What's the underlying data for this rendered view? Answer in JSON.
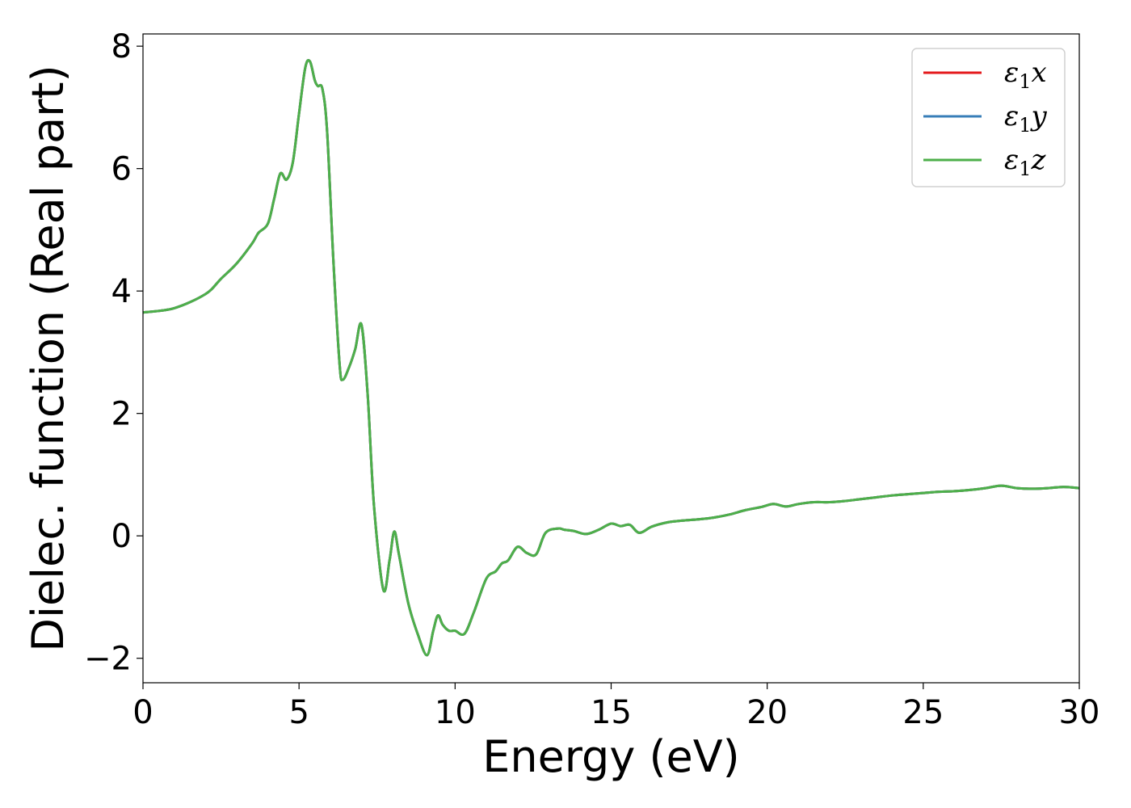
{
  "chart_data": {
    "type": "line",
    "xlabel": "Energy (eV)",
    "ylabel": "Dielec. function (Real part)",
    "xlim": [
      0,
      30
    ],
    "ylim": [
      -2.4,
      8.2
    ],
    "xticks": [
      0,
      5,
      10,
      15,
      20,
      25,
      30
    ],
    "yticks": [
      -2,
      0,
      2,
      4,
      6,
      8
    ],
    "xtick_labels": [
      "0",
      "5",
      "10",
      "15",
      "20",
      "25",
      "30"
    ],
    "ytick_labels": [
      "−2",
      "0",
      "2",
      "4",
      "6",
      "8"
    ],
    "grid": false,
    "legend_position": "top-right",
    "x": [
      0,
      1,
      2,
      2.5,
      3,
      3.5,
      3.7,
      4,
      4.2,
      4.4,
      4.6,
      4.8,
      5,
      5.2,
      5.35,
      5.5,
      5.6,
      5.75,
      5.9,
      6.1,
      6.3,
      6.4,
      6.6,
      6.8,
      7.0,
      7.2,
      7.4,
      7.7,
      7.9,
      8.05,
      8.2,
      8.5,
      8.8,
      9.1,
      9.3,
      9.45,
      9.6,
      9.8,
      10.0,
      10.3,
      10.6,
      11.0,
      11.3,
      11.5,
      11.7,
      12.0,
      12.3,
      12.6,
      12.9,
      13.3,
      13.5,
      13.8,
      14.2,
      14.6,
      15.0,
      15.3,
      15.6,
      15.9,
      16.3,
      16.8,
      17.3,
      17.8,
      18.3,
      18.8,
      19.3,
      19.8,
      20.2,
      20.6,
      21.0,
      21.5,
      22.0,
      22.5,
      23.0,
      23.5,
      24.0,
      24.5,
      25.0,
      25.5,
      26.0,
      26.5,
      27.0,
      27.5,
      28.0,
      28.5,
      29.0,
      29.5,
      30.0
    ],
    "series": [
      {
        "name": "ε1x",
        "name_base": "ε",
        "name_sub": "1",
        "name_tail": "x",
        "color": "#e41a1c",
        "values": [
          3.65,
          3.72,
          3.95,
          4.2,
          4.45,
          4.78,
          4.95,
          5.1,
          5.5,
          5.92,
          5.82,
          6.1,
          6.9,
          7.65,
          7.75,
          7.45,
          7.35,
          7.3,
          6.6,
          4.5,
          2.8,
          2.55,
          2.75,
          3.05,
          3.45,
          2.3,
          0.5,
          -0.88,
          -0.4,
          0.07,
          -0.3,
          -1.1,
          -1.6,
          -1.95,
          -1.55,
          -1.3,
          -1.45,
          -1.55,
          -1.55,
          -1.6,
          -1.25,
          -0.7,
          -0.58,
          -0.45,
          -0.4,
          -0.18,
          -0.28,
          -0.3,
          0.05,
          0.12,
          0.1,
          0.08,
          0.03,
          0.1,
          0.2,
          0.16,
          0.18,
          0.05,
          0.15,
          0.22,
          0.25,
          0.27,
          0.3,
          0.35,
          0.42,
          0.47,
          0.52,
          0.48,
          0.52,
          0.55,
          0.55,
          0.57,
          0.6,
          0.63,
          0.66,
          0.68,
          0.7,
          0.72,
          0.73,
          0.75,
          0.78,
          0.82,
          0.78,
          0.77,
          0.78,
          0.8,
          0.78
        ]
      },
      {
        "name": "ε1y",
        "name_base": "ε",
        "name_sub": "1",
        "name_tail": "y",
        "color": "#377eb8",
        "values": [
          3.65,
          3.72,
          3.95,
          4.2,
          4.45,
          4.78,
          4.95,
          5.1,
          5.5,
          5.92,
          5.82,
          6.1,
          6.9,
          7.65,
          7.75,
          7.45,
          7.35,
          7.3,
          6.6,
          4.5,
          2.8,
          2.55,
          2.75,
          3.05,
          3.45,
          2.3,
          0.5,
          -0.88,
          -0.4,
          0.07,
          -0.3,
          -1.1,
          -1.6,
          -1.95,
          -1.55,
          -1.3,
          -1.45,
          -1.55,
          -1.55,
          -1.6,
          -1.25,
          -0.7,
          -0.58,
          -0.45,
          -0.4,
          -0.18,
          -0.28,
          -0.3,
          0.05,
          0.12,
          0.1,
          0.08,
          0.03,
          0.1,
          0.2,
          0.16,
          0.18,
          0.05,
          0.15,
          0.22,
          0.25,
          0.27,
          0.3,
          0.35,
          0.42,
          0.47,
          0.52,
          0.48,
          0.52,
          0.55,
          0.55,
          0.57,
          0.6,
          0.63,
          0.66,
          0.68,
          0.7,
          0.72,
          0.73,
          0.75,
          0.78,
          0.82,
          0.78,
          0.77,
          0.78,
          0.8,
          0.78
        ]
      },
      {
        "name": "ε1z",
        "name_base": "ε",
        "name_sub": "1",
        "name_tail": "z",
        "color": "#4daf4a",
        "values": [
          3.65,
          3.72,
          3.95,
          4.2,
          4.45,
          4.78,
          4.95,
          5.1,
          5.5,
          5.92,
          5.82,
          6.1,
          6.9,
          7.65,
          7.75,
          7.45,
          7.35,
          7.3,
          6.6,
          4.5,
          2.8,
          2.55,
          2.75,
          3.05,
          3.45,
          2.3,
          0.5,
          -0.88,
          -0.4,
          0.07,
          -0.3,
          -1.1,
          -1.6,
          -1.95,
          -1.55,
          -1.3,
          -1.45,
          -1.55,
          -1.55,
          -1.6,
          -1.25,
          -0.7,
          -0.58,
          -0.45,
          -0.4,
          -0.18,
          -0.28,
          -0.3,
          0.05,
          0.12,
          0.1,
          0.08,
          0.03,
          0.1,
          0.2,
          0.16,
          0.18,
          0.05,
          0.15,
          0.22,
          0.25,
          0.27,
          0.3,
          0.35,
          0.42,
          0.47,
          0.52,
          0.48,
          0.52,
          0.55,
          0.55,
          0.57,
          0.6,
          0.63,
          0.66,
          0.68,
          0.7,
          0.72,
          0.73,
          0.75,
          0.78,
          0.82,
          0.78,
          0.77,
          0.78,
          0.8,
          0.78
        ]
      }
    ]
  }
}
